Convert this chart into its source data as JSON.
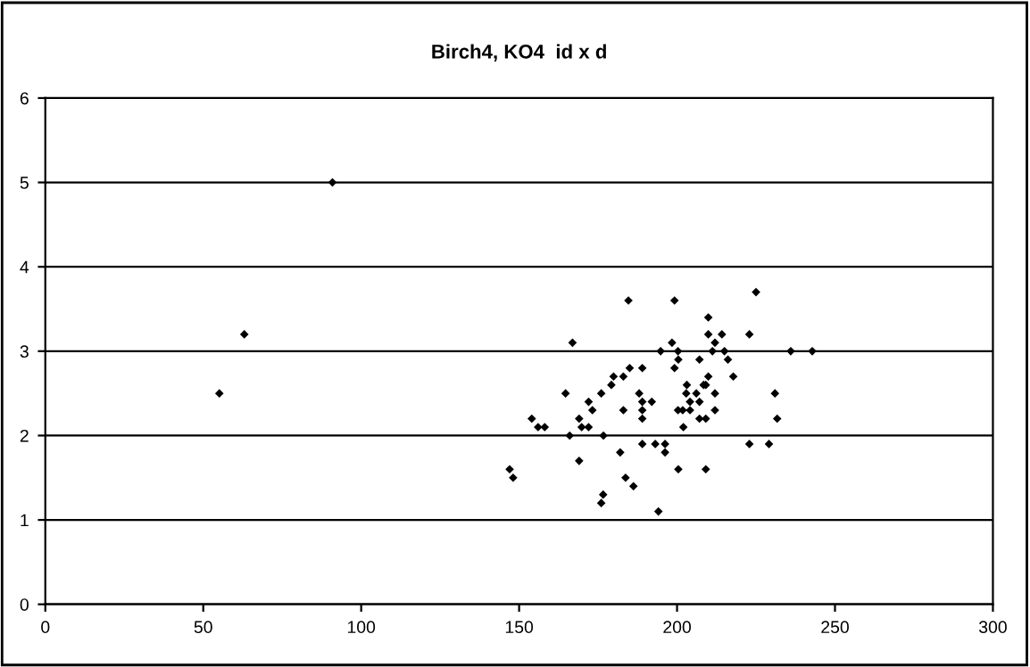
{
  "chart_data": {
    "type": "scatter",
    "title": "Birch4, KO4  id x d",
    "x": [
      225,
      184.6,
      199.2,
      209.9,
      209.9,
      214.2,
      222.9,
      166.9,
      198.4,
      212,
      194.8,
      200.3,
      211.2,
      215,
      236,
      242.8,
      200.4,
      207.1,
      216.1,
      199.2,
      185,
      189,
      179.9,
      183,
      209.9,
      217.8,
      179.2,
      203.1,
      208.4,
      209.1,
      164.7,
      176,
      188,
      202.9,
      206.1,
      212,
      231,
      172,
      189,
      192,
      204.1,
      207.1,
      173.2,
      183,
      189,
      200.3,
      201.8,
      204.1,
      212,
      154,
      169,
      189,
      207.1,
      209.1,
      231.7,
      156,
      158.1,
      169.8,
      172,
      202,
      166,
      176.7,
      189,
      193.1,
      196.2,
      222.9,
      229.1,
      196.2,
      182,
      169,
      200.4,
      209.1,
      183.7,
      186.2,
      176.6,
      176,
      194.1,
      147,
      148.1,
      90.9,
      63,
      55.1
    ],
    "series": [
      {
        "color": "#000000",
        "values": [
          3.7,
          3.6,
          3.6,
          3.4,
          3.2,
          3.2,
          3.2,
          3.1,
          3.1,
          3.1,
          3.0,
          3.0,
          3.0,
          3.0,
          3.0,
          3.0,
          2.9,
          2.9,
          2.9,
          2.8,
          2.8,
          2.8,
          2.7,
          2.7,
          2.7,
          2.7,
          2.6,
          2.6,
          2.6,
          2.6,
          2.5,
          2.5,
          2.5,
          2.5,
          2.5,
          2.5,
          2.5,
          2.4,
          2.4,
          2.4,
          2.4,
          2.4,
          2.3,
          2.3,
          2.3,
          2.3,
          2.3,
          2.3,
          2.3,
          2.2,
          2.2,
          2.2,
          2.2,
          2.2,
          2.2,
          2.1,
          2.1,
          2.1,
          2.1,
          2.1,
          2.0,
          2.0,
          1.9,
          1.9,
          1.9,
          1.9,
          1.9,
          1.8,
          1.8,
          1.7,
          1.6,
          1.6,
          1.5,
          1.4,
          1.3,
          1.2,
          1.1,
          1.6,
          1.5,
          5.0,
          3.2,
          2.5
        ]
      }
    ],
    "xlim": [
      0,
      300
    ],
    "xticks": [
      0,
      50,
      100,
      150,
      200,
      250,
      300
    ],
    "ylim": [
      0,
      6
    ],
    "yticks": [
      0,
      1,
      2,
      3,
      4,
      5,
      6
    ],
    "grid": "y",
    "marker": "diamond",
    "legend": false
  }
}
